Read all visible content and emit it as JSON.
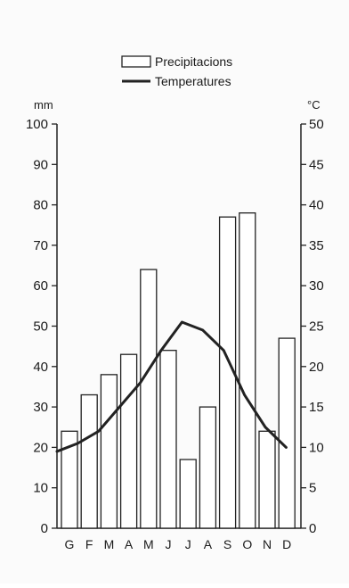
{
  "chart_data": {
    "type": "bar+line",
    "categories": [
      "G",
      "F",
      "M",
      "A",
      "M",
      "J",
      "J",
      "A",
      "S",
      "O",
      "N",
      "D"
    ],
    "series": [
      {
        "name": "Precipitacions",
        "kind": "bar",
        "axis": "left",
        "values": [
          24,
          33,
          38,
          43,
          64,
          44,
          17,
          30,
          77,
          78,
          24,
          47
        ]
      },
      {
        "name": "Temperatures",
        "kind": "line",
        "axis": "right",
        "values": [
          9.5,
          10.5,
          12,
          15,
          18,
          22,
          25.5,
          24.5,
          22,
          16.5,
          12.5,
          10
        ]
      }
    ],
    "left_axis": {
      "label": "mm",
      "ticks": [
        0,
        10,
        20,
        30,
        40,
        50,
        60,
        70,
        80,
        90,
        100
      ],
      "range": [
        0,
        100
      ]
    },
    "right_axis": {
      "label": "°C",
      "ticks": [
        0,
        5,
        10,
        15,
        20,
        25,
        30,
        35,
        40,
        45,
        50
      ],
      "range": [
        0,
        50
      ]
    },
    "legend_position": "top-center",
    "colors": {
      "bar_fill": "#ffffff",
      "bar_stroke": "#222222",
      "line": "#222222"
    }
  }
}
